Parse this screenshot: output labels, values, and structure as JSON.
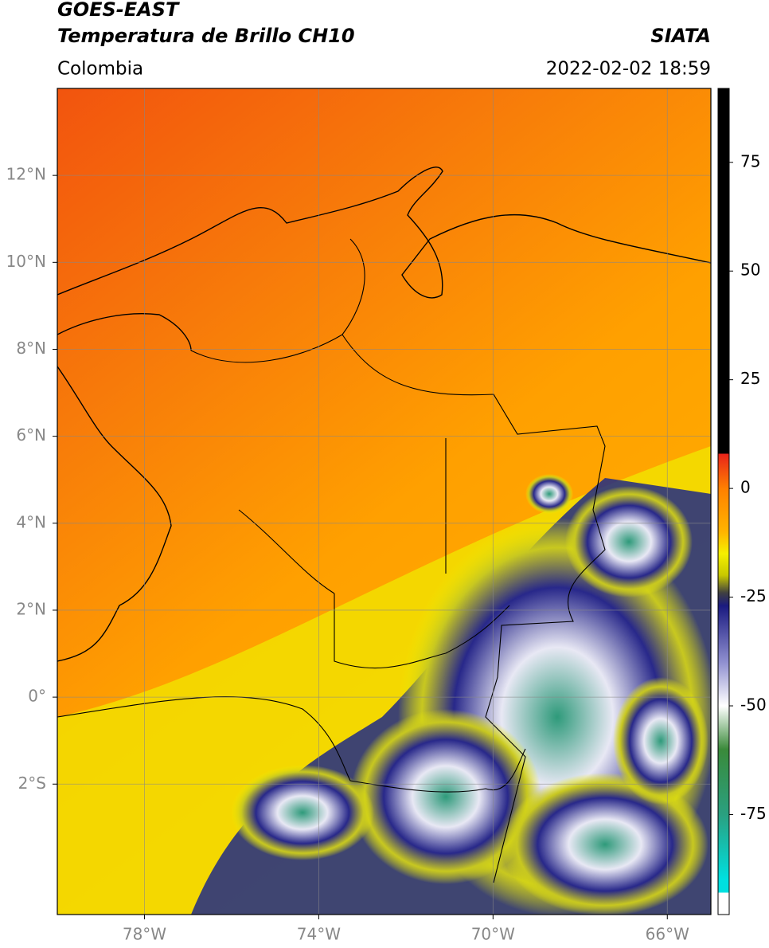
{
  "header": {
    "title": "GOES-EAST",
    "subtitle": "Temperatura de Brillo CH10",
    "agency": "SIATA",
    "region": "Colombia",
    "datetime": "2022-02-02 18:59"
  },
  "map": {
    "xlim": [
      -80,
      -65
    ],
    "ylim": [
      -5,
      14
    ],
    "xticks": [
      {
        "value": -78,
        "label": "78°W"
      },
      {
        "value": -74,
        "label": "74°W"
      },
      {
        "value": -70,
        "label": "70°W"
      },
      {
        "value": -66,
        "label": "66°W"
      }
    ],
    "yticks": [
      {
        "value": 12,
        "label": "12°N"
      },
      {
        "value": 10,
        "label": "10°N"
      },
      {
        "value": 8,
        "label": "8°N"
      },
      {
        "value": 6,
        "label": "6°N"
      },
      {
        "value": 4,
        "label": "4°N"
      },
      {
        "value": 2,
        "label": "2°N"
      },
      {
        "value": 0,
        "label": "0°"
      },
      {
        "value": -2,
        "label": "2°S"
      }
    ],
    "grid": true
  },
  "colorbar": {
    "clim": [
      -98,
      92
    ],
    "ticks": [
      75,
      50,
      25,
      0,
      -25,
      -50,
      -75
    ],
    "colormap": [
      {
        "value": 92,
        "color": "#000000"
      },
      {
        "value": 8,
        "color": "#000000"
      },
      {
        "value": 8,
        "color": "#e8231a"
      },
      {
        "value": 0,
        "color": "#ff8000"
      },
      {
        "value": -10,
        "color": "#ffb400"
      },
      {
        "value": -15,
        "color": "#f5f000"
      },
      {
        "value": -20,
        "color": "#c8c800"
      },
      {
        "value": -24,
        "color": "#404040"
      },
      {
        "value": -27,
        "color": "#1a1a80"
      },
      {
        "value": -40,
        "color": "#9090d0"
      },
      {
        "value": -50,
        "color": "#ffffff"
      },
      {
        "value": -60,
        "color": "#3a8a3a"
      },
      {
        "value": -75,
        "color": "#2aa080"
      },
      {
        "value": -90,
        "color": "#00e0e0"
      },
      {
        "value": -93,
        "color": "#00e0e0"
      },
      {
        "value": -93,
        "color": "#ffffff"
      },
      {
        "value": -98,
        "color": "#ffffff"
      }
    ]
  }
}
